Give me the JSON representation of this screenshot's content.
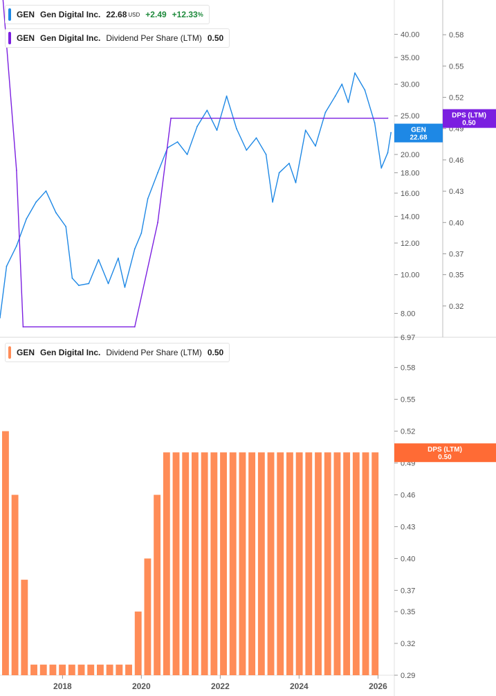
{
  "legend_price": {
    "ticker": "GEN",
    "name": "Gen Digital Inc.",
    "price": "22.68",
    "currency": "USD",
    "change": "+2.49",
    "change_pct": "+12.33",
    "pct_sign": "%"
  },
  "legend_dps_top": {
    "ticker": "GEN",
    "name": "Gen Digital Inc.",
    "metric": "Dividend Per Share (LTM)",
    "value": "0.50"
  },
  "legend_dps_bottom": {
    "ticker": "GEN",
    "name": "Gen Digital Inc.",
    "metric": "Dividend Per Share (LTM)",
    "value": "0.50"
  },
  "colors": {
    "price_line": "#1e88e5",
    "dps_line": "#7b1fe0",
    "bars": "#ff8c57",
    "price_tag": "#1e88e5",
    "dps_tag_top": "#7b1fe0",
    "dps_tag_bottom": "#ff6b35",
    "axis_text": "#555555",
    "divider": "#d8d8d8"
  },
  "tags": {
    "gen_label": "GEN",
    "gen_value": "22.68",
    "dps_label": "DPS (LTM)",
    "dps_value": "0.50"
  },
  "chart_data": [
    {
      "type": "line",
      "title": "",
      "scale": "log",
      "series": [
        {
          "name": "GEN",
          "axis": "left",
          "x": [
            "2016-06",
            "2016-08",
            "2016-11",
            "2017-02",
            "2017-05",
            "2017-08",
            "2017-11",
            "2018-02",
            "2018-04",
            "2018-06",
            "2018-09",
            "2018-12",
            "2019-03",
            "2019-06",
            "2019-08",
            "2019-11",
            "2020-01",
            "2020-03",
            "2020-06",
            "2020-09",
            "2020-12",
            "2021-03",
            "2021-06",
            "2021-09",
            "2021-12",
            "2022-03",
            "2022-06",
            "2022-09",
            "2022-12",
            "2023-03",
            "2023-05",
            "2023-07",
            "2023-10",
            "2023-12",
            "2024-03",
            "2024-06",
            "2024-09",
            "2024-12",
            "2025-02",
            "2025-04",
            "2025-06",
            "2025-09",
            "2025-12",
            "2026-02",
            "2026-04",
            "2026-05"
          ],
          "values": [
            7.8,
            10.5,
            11.8,
            13.8,
            15.2,
            16.2,
            14.3,
            13.2,
            9.8,
            9.4,
            9.5,
            10.9,
            9.5,
            11.0,
            9.3,
            11.6,
            12.7,
            15.5,
            18.0,
            20.8,
            21.5,
            20.0,
            23.5,
            25.8,
            23.0,
            28.0,
            23.2,
            20.5,
            22.0,
            20.0,
            15.2,
            18.0,
            19.0,
            17.0,
            23.0,
            21.0,
            25.5,
            28.0,
            30.0,
            27.0,
            32.0,
            29.0,
            24.0,
            18.5,
            20.2,
            22.68
          ],
          "yticks": [
            6.97,
            8.0,
            10.0,
            12.0,
            14.0,
            16.0,
            18.0,
            20.0,
            25.0,
            30.0,
            35.0,
            40.0
          ],
          "ylim": [
            6.97,
            45
          ]
        },
        {
          "name": "DPS (LTM)",
          "axis": "right",
          "x": [
            "2016-06",
            "2016-11",
            "2017-01",
            "2019-11",
            "2020-06",
            "2020-10",
            "2026-04"
          ],
          "values": [
            0.65,
            0.45,
            0.3,
            0.3,
            0.4,
            0.5,
            0.5
          ],
          "yticks": [
            0.29,
            0.32,
            0.35,
            0.37,
            0.4,
            0.43,
            0.46,
            0.49,
            0.52,
            0.55,
            0.58
          ],
          "ylim": [
            0.29,
            0.6
          ]
        }
      ],
      "xticks": [
        "2018",
        "2020",
        "2022",
        "2024",
        "2026"
      ]
    },
    {
      "type": "bar",
      "title": "",
      "series": [
        {
          "name": "Dividend Per Share (LTM)",
          "values": [
            0.52,
            0.46,
            0.38,
            0.3,
            0.3,
            0.3,
            0.3,
            0.3,
            0.3,
            0.3,
            0.3,
            0.3,
            0.3,
            0.3,
            0.35,
            0.4,
            0.46,
            0.5,
            0.5,
            0.5,
            0.5,
            0.5,
            0.5,
            0.5,
            0.5,
            0.5,
            0.5,
            0.5,
            0.5,
            0.5,
            0.5,
            0.5,
            0.5,
            0.5,
            0.5,
            0.5,
            0.5,
            0.5,
            0.5,
            0.5
          ]
        }
      ],
      "ylim": [
        0.29,
        0.6
      ],
      "yticks": [
        0.29,
        0.32,
        0.35,
        0.37,
        0.4,
        0.43,
        0.46,
        0.49,
        0.52,
        0.55,
        0.58
      ],
      "xticks": [
        "2018",
        "2020",
        "2022",
        "2024",
        "2026"
      ]
    }
  ]
}
